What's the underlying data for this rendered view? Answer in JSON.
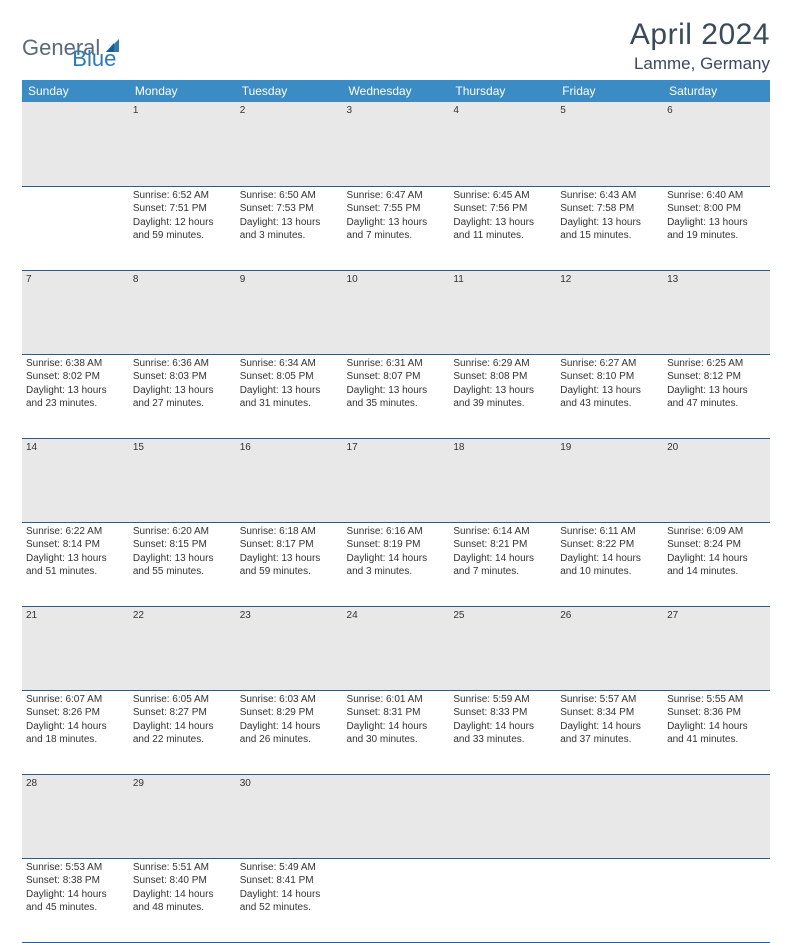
{
  "logo": {
    "general": "General",
    "blue": "Blue"
  },
  "title": "April 2024",
  "location": "Lamme, Germany",
  "colors": {
    "header_bg": "#3b8bc4",
    "header_text": "#ffffff",
    "daynum_bg": "#e8e8e8",
    "daynum_text": "#555555",
    "cell_border": "#2c5a8a",
    "body_text": "#333333",
    "title_text": "#3a4a5a",
    "logo_general": "#5a6a7a",
    "logo_blue": "#2c7ab8"
  },
  "weekdays": [
    "Sunday",
    "Monday",
    "Tuesday",
    "Wednesday",
    "Thursday",
    "Friday",
    "Saturday"
  ],
  "weeks": [
    {
      "nums": [
        "",
        "1",
        "2",
        "3",
        "4",
        "5",
        "6"
      ],
      "cells": [
        null,
        {
          "sunrise": "Sunrise: 6:52 AM",
          "sunset": "Sunset: 7:51 PM",
          "day1": "Daylight: 12 hours",
          "day2": "and 59 minutes."
        },
        {
          "sunrise": "Sunrise: 6:50 AM",
          "sunset": "Sunset: 7:53 PM",
          "day1": "Daylight: 13 hours",
          "day2": "and 3 minutes."
        },
        {
          "sunrise": "Sunrise: 6:47 AM",
          "sunset": "Sunset: 7:55 PM",
          "day1": "Daylight: 13 hours",
          "day2": "and 7 minutes."
        },
        {
          "sunrise": "Sunrise: 6:45 AM",
          "sunset": "Sunset: 7:56 PM",
          "day1": "Daylight: 13 hours",
          "day2": "and 11 minutes."
        },
        {
          "sunrise": "Sunrise: 6:43 AM",
          "sunset": "Sunset: 7:58 PM",
          "day1": "Daylight: 13 hours",
          "day2": "and 15 minutes."
        },
        {
          "sunrise": "Sunrise: 6:40 AM",
          "sunset": "Sunset: 8:00 PM",
          "day1": "Daylight: 13 hours",
          "day2": "and 19 minutes."
        }
      ]
    },
    {
      "nums": [
        "7",
        "8",
        "9",
        "10",
        "11",
        "12",
        "13"
      ],
      "cells": [
        {
          "sunrise": "Sunrise: 6:38 AM",
          "sunset": "Sunset: 8:02 PM",
          "day1": "Daylight: 13 hours",
          "day2": "and 23 minutes."
        },
        {
          "sunrise": "Sunrise: 6:36 AM",
          "sunset": "Sunset: 8:03 PM",
          "day1": "Daylight: 13 hours",
          "day2": "and 27 minutes."
        },
        {
          "sunrise": "Sunrise: 6:34 AM",
          "sunset": "Sunset: 8:05 PM",
          "day1": "Daylight: 13 hours",
          "day2": "and 31 minutes."
        },
        {
          "sunrise": "Sunrise: 6:31 AM",
          "sunset": "Sunset: 8:07 PM",
          "day1": "Daylight: 13 hours",
          "day2": "and 35 minutes."
        },
        {
          "sunrise": "Sunrise: 6:29 AM",
          "sunset": "Sunset: 8:08 PM",
          "day1": "Daylight: 13 hours",
          "day2": "and 39 minutes."
        },
        {
          "sunrise": "Sunrise: 6:27 AM",
          "sunset": "Sunset: 8:10 PM",
          "day1": "Daylight: 13 hours",
          "day2": "and 43 minutes."
        },
        {
          "sunrise": "Sunrise: 6:25 AM",
          "sunset": "Sunset: 8:12 PM",
          "day1": "Daylight: 13 hours",
          "day2": "and 47 minutes."
        }
      ]
    },
    {
      "nums": [
        "14",
        "15",
        "16",
        "17",
        "18",
        "19",
        "20"
      ],
      "cells": [
        {
          "sunrise": "Sunrise: 6:22 AM",
          "sunset": "Sunset: 8:14 PM",
          "day1": "Daylight: 13 hours",
          "day2": "and 51 minutes."
        },
        {
          "sunrise": "Sunrise: 6:20 AM",
          "sunset": "Sunset: 8:15 PM",
          "day1": "Daylight: 13 hours",
          "day2": "and 55 minutes."
        },
        {
          "sunrise": "Sunrise: 6:18 AM",
          "sunset": "Sunset: 8:17 PM",
          "day1": "Daylight: 13 hours",
          "day2": "and 59 minutes."
        },
        {
          "sunrise": "Sunrise: 6:16 AM",
          "sunset": "Sunset: 8:19 PM",
          "day1": "Daylight: 14 hours",
          "day2": "and 3 minutes."
        },
        {
          "sunrise": "Sunrise: 6:14 AM",
          "sunset": "Sunset: 8:21 PM",
          "day1": "Daylight: 14 hours",
          "day2": "and 7 minutes."
        },
        {
          "sunrise": "Sunrise: 6:11 AM",
          "sunset": "Sunset: 8:22 PM",
          "day1": "Daylight: 14 hours",
          "day2": "and 10 minutes."
        },
        {
          "sunrise": "Sunrise: 6:09 AM",
          "sunset": "Sunset: 8:24 PM",
          "day1": "Daylight: 14 hours",
          "day2": "and 14 minutes."
        }
      ]
    },
    {
      "nums": [
        "21",
        "22",
        "23",
        "24",
        "25",
        "26",
        "27"
      ],
      "cells": [
        {
          "sunrise": "Sunrise: 6:07 AM",
          "sunset": "Sunset: 8:26 PM",
          "day1": "Daylight: 14 hours",
          "day2": "and 18 minutes."
        },
        {
          "sunrise": "Sunrise: 6:05 AM",
          "sunset": "Sunset: 8:27 PM",
          "day1": "Daylight: 14 hours",
          "day2": "and 22 minutes."
        },
        {
          "sunrise": "Sunrise: 6:03 AM",
          "sunset": "Sunset: 8:29 PM",
          "day1": "Daylight: 14 hours",
          "day2": "and 26 minutes."
        },
        {
          "sunrise": "Sunrise: 6:01 AM",
          "sunset": "Sunset: 8:31 PM",
          "day1": "Daylight: 14 hours",
          "day2": "and 30 minutes."
        },
        {
          "sunrise": "Sunrise: 5:59 AM",
          "sunset": "Sunset: 8:33 PM",
          "day1": "Daylight: 14 hours",
          "day2": "and 33 minutes."
        },
        {
          "sunrise": "Sunrise: 5:57 AM",
          "sunset": "Sunset: 8:34 PM",
          "day1": "Daylight: 14 hours",
          "day2": "and 37 minutes."
        },
        {
          "sunrise": "Sunrise: 5:55 AM",
          "sunset": "Sunset: 8:36 PM",
          "day1": "Daylight: 14 hours",
          "day2": "and 41 minutes."
        }
      ]
    },
    {
      "nums": [
        "28",
        "29",
        "30",
        "",
        "",
        "",
        ""
      ],
      "cells": [
        {
          "sunrise": "Sunrise: 5:53 AM",
          "sunset": "Sunset: 8:38 PM",
          "day1": "Daylight: 14 hours",
          "day2": "and 45 minutes."
        },
        {
          "sunrise": "Sunrise: 5:51 AM",
          "sunset": "Sunset: 8:40 PM",
          "day1": "Daylight: 14 hours",
          "day2": "and 48 minutes."
        },
        {
          "sunrise": "Sunrise: 5:49 AM",
          "sunset": "Sunset: 8:41 PM",
          "day1": "Daylight: 14 hours",
          "day2": "and 52 minutes."
        },
        null,
        null,
        null,
        null
      ]
    }
  ]
}
